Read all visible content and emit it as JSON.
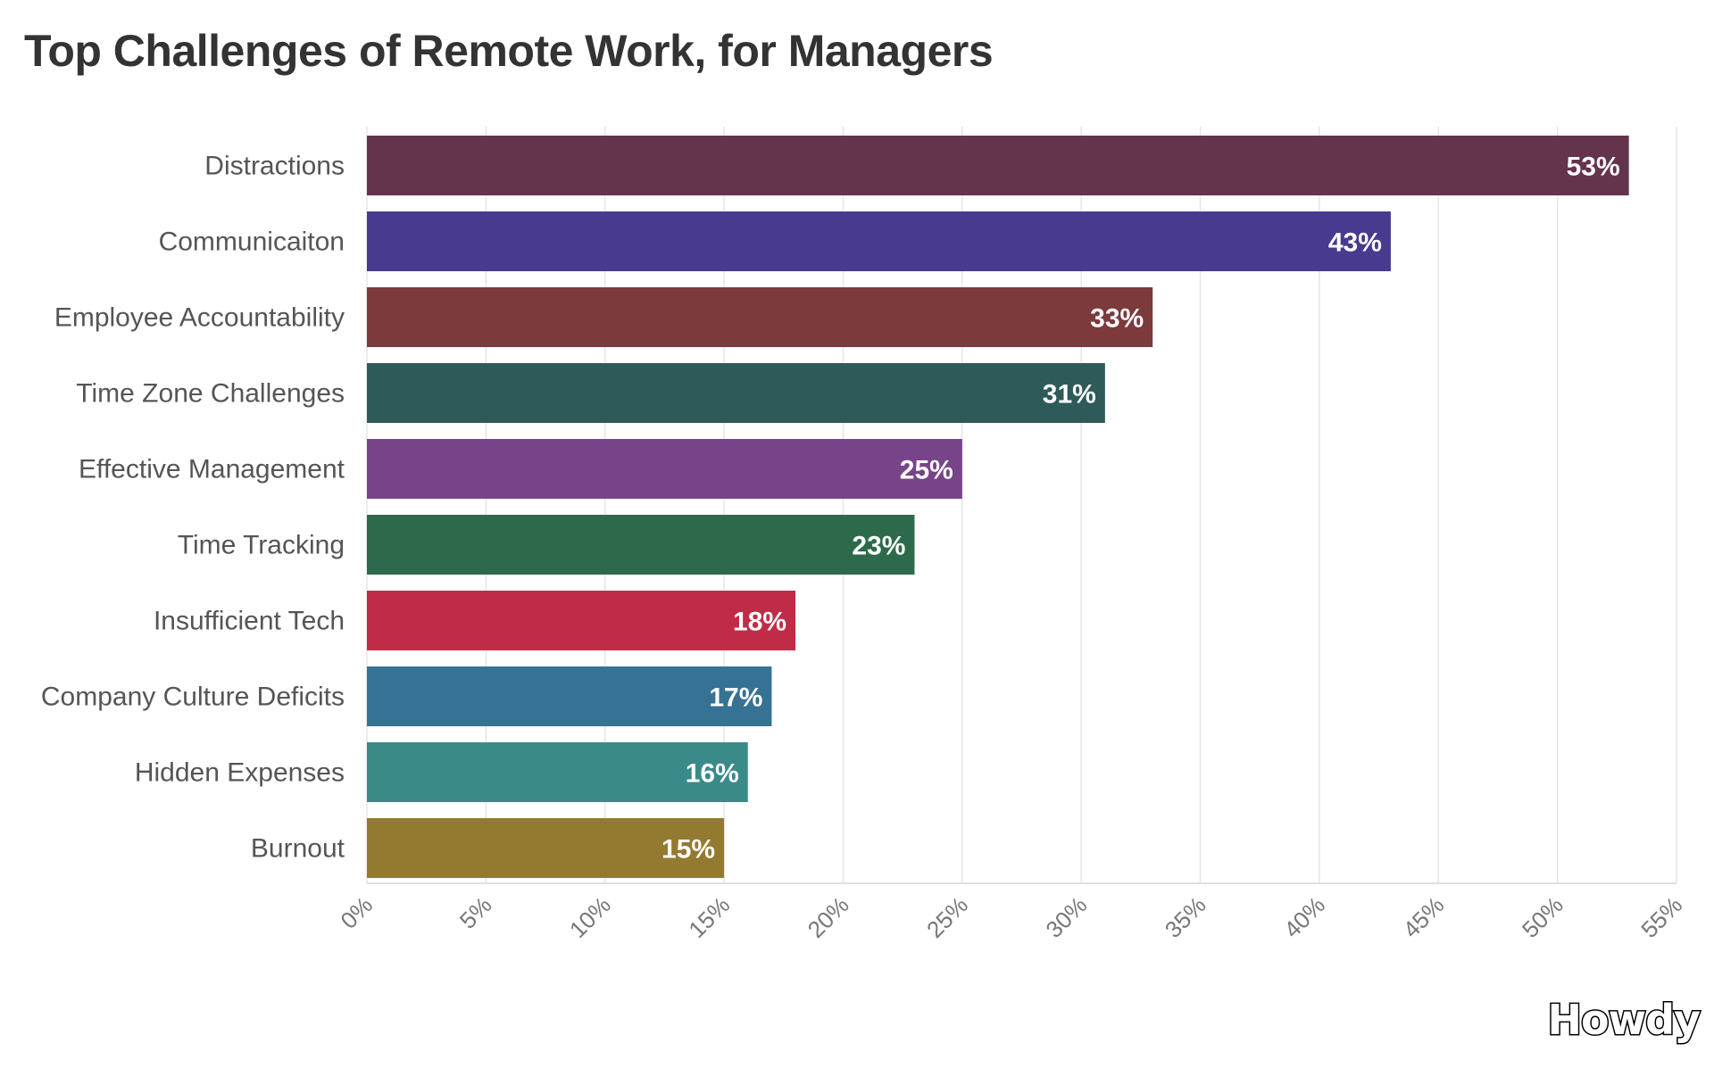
{
  "chart_data": {
    "type": "bar",
    "orientation": "horizontal",
    "title": "Top Challenges of Remote Work, for Managers",
    "xlabel": "",
    "ylabel": "",
    "categories": [
      "Distractions",
      "Communicaiton",
      "Employee Accountability",
      "Time Zone Challenges",
      "Effective Management",
      "Time Tracking",
      "Insufficient Tech",
      "Company Culture Deficits",
      "Hidden Expenses",
      "Burnout"
    ],
    "values": [
      53,
      43,
      33,
      31,
      25,
      23,
      18,
      17,
      16,
      15
    ],
    "value_labels": [
      "53%",
      "43%",
      "33%",
      "31%",
      "25%",
      "23%",
      "18%",
      "17%",
      "16%",
      "15%"
    ],
    "colors": [
      "#63344c",
      "#483a8e",
      "#7c3a3d",
      "#2f5a5a",
      "#77448a",
      "#2d6a4b",
      "#c02c47",
      "#357293",
      "#3a8a89",
      "#947a31"
    ],
    "xlim": [
      0,
      55
    ],
    "xticks": [
      0,
      5,
      10,
      15,
      20,
      25,
      30,
      35,
      40,
      45,
      50,
      55
    ],
    "xtick_labels": [
      "0%",
      "5%",
      "10%",
      "15%",
      "20%",
      "25%",
      "30%",
      "35%",
      "40%",
      "45%",
      "50%",
      "55%"
    ],
    "grid": true,
    "legend": "none"
  },
  "branding": {
    "logo_text": "Howdy"
  }
}
